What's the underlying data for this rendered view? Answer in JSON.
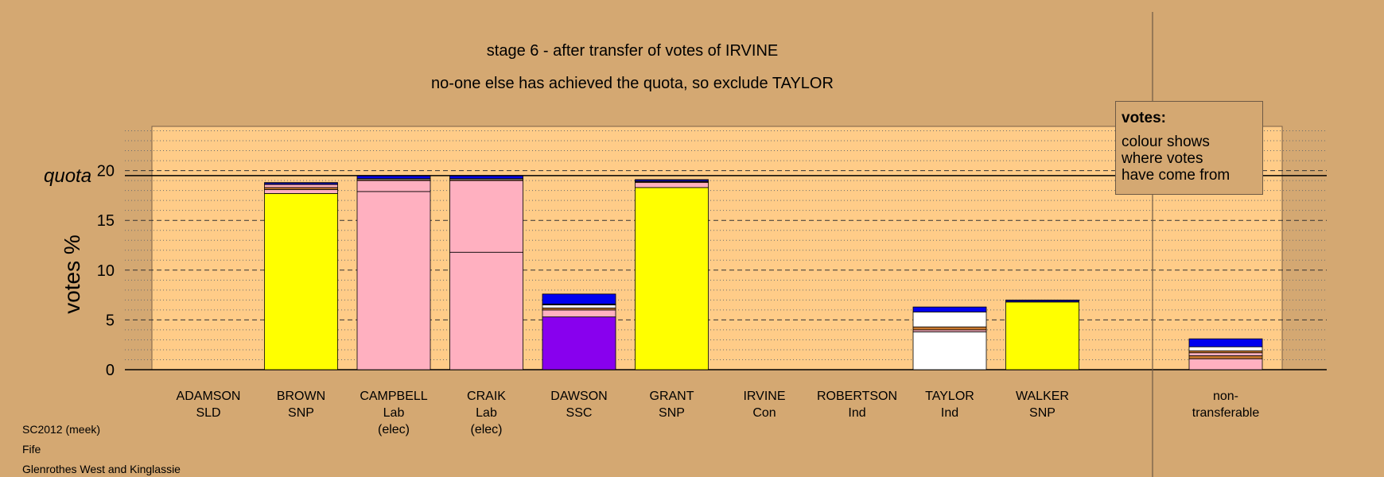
{
  "title": "stage 6 - after transfer of votes of IRVINE",
  "subtitle": "no-one else has achieved the quota, so exclude TAYLOR",
  "legend": {
    "heading": "votes:",
    "lines": [
      "colour shows",
      "where votes",
      "have come from"
    ]
  },
  "footer": {
    "line1": "SC2012 (meek)",
    "line2": "Fife",
    "line3": "Glenrothes West and Kinglassie"
  },
  "colors": {
    "background": "#D4A872",
    "plot_area": "#FFCC88",
    "SNP": "#FFFF00",
    "Lab": "#FFB0C0",
    "SSC": "#8800EE",
    "Ind_other": "#0000EE",
    "Ind": "#FFFFFF",
    "Con": "#0A0A8C",
    "misc": "#C8782E"
  },
  "chart_data": {
    "type": "bar",
    "stacked": true,
    "ylabel": "votes %",
    "ylim": [
      0,
      25
    ],
    "yticks": [
      0,
      5,
      10,
      15,
      20
    ],
    "quota": 19.5,
    "quota_label": "quota",
    "grid": "dashed every 5, dotted every 1",
    "legend_placement": "top-right",
    "categories": [
      {
        "name": "ADAMSON",
        "party": "SLD",
        "note": "",
        "segments": []
      },
      {
        "name": "BROWN",
        "party": "SNP",
        "note": "",
        "segments": [
          {
            "source": "SNP",
            "value": 17.7,
            "color": "#FFFF00"
          },
          {
            "source": "Lab",
            "value": 0.4,
            "color": "#FFB0C0"
          },
          {
            "source": "misc",
            "value": 0.2,
            "color": "#C8782E"
          },
          {
            "source": "Lab",
            "value": 0.3,
            "color": "#FFB0C0"
          },
          {
            "source": "Con",
            "value": 0.2,
            "color": "#0A0A8C"
          }
        ]
      },
      {
        "name": "CAMPBELL",
        "party": "Lab",
        "note": "(elec)",
        "segments": [
          {
            "source": "Lab",
            "value": 17.9,
            "color": "#FFB0C0"
          },
          {
            "source": "Lab",
            "value": 1.1,
            "color": "#FFB0C0"
          },
          {
            "source": "misc",
            "value": 0.1,
            "color": "#C8782E"
          },
          {
            "source": "Ind",
            "value": 0.1,
            "color": "#FFFFFF"
          },
          {
            "source": "Ind_other",
            "value": 0.3,
            "color": "#0000EE"
          }
        ]
      },
      {
        "name": "CRAIK",
        "party": "Lab",
        "note": "(elec)",
        "segments": [
          {
            "source": "Lab",
            "value": 11.8,
            "color": "#FFB0C0"
          },
          {
            "source": "Lab",
            "value": 7.2,
            "color": "#FFB0C0"
          },
          {
            "source": "misc",
            "value": 0.1,
            "color": "#C8782E"
          },
          {
            "source": "Ind",
            "value": 0.1,
            "color": "#FFFFFF"
          },
          {
            "source": "Ind_other",
            "value": 0.3,
            "color": "#0000EE"
          }
        ]
      },
      {
        "name": "DAWSON",
        "party": "SSC",
        "note": "",
        "segments": [
          {
            "source": "SSC",
            "value": 5.3,
            "color": "#8800EE"
          },
          {
            "source": "Lab",
            "value": 0.7,
            "color": "#FFB0C0"
          },
          {
            "source": "misc",
            "value": 0.2,
            "color": "#C8782E"
          },
          {
            "source": "Ind",
            "value": 0.3,
            "color": "#FFFFFF"
          },
          {
            "source": "Con",
            "value": 0.1,
            "color": "#0A0A8C"
          },
          {
            "source": "Ind_other",
            "value": 1.0,
            "color": "#0000EE"
          }
        ]
      },
      {
        "name": "GRANT",
        "party": "SNP",
        "note": "",
        "segments": [
          {
            "source": "SNP",
            "value": 18.3,
            "color": "#FFFF00"
          },
          {
            "source": "Lab",
            "value": 0.5,
            "color": "#FFB0C0"
          },
          {
            "source": "misc",
            "value": 0.1,
            "color": "#C8782E"
          },
          {
            "source": "Con",
            "value": 0.2,
            "color": "#0A0A8C"
          }
        ]
      },
      {
        "name": "IRVINE",
        "party": "Con",
        "note": "",
        "segments": []
      },
      {
        "name": "ROBERTSON",
        "party": "Ind",
        "note": "",
        "segments": []
      },
      {
        "name": "TAYLOR",
        "party": "Ind",
        "note": "",
        "segments": [
          {
            "source": "Ind",
            "value": 3.8,
            "color": "#FFFFFF"
          },
          {
            "source": "Lab",
            "value": 0.2,
            "color": "#FFB0C0"
          },
          {
            "source": "misc",
            "value": 0.3,
            "color": "#C8782E"
          },
          {
            "source": "Ind",
            "value": 1.5,
            "color": "#FFFFFF"
          },
          {
            "source": "Ind_other",
            "value": 0.5,
            "color": "#0000EE"
          }
        ]
      },
      {
        "name": "WALKER",
        "party": "SNP",
        "note": "",
        "segments": [
          {
            "source": "SNP",
            "value": 6.8,
            "color": "#FFFF00"
          },
          {
            "source": "Con",
            "value": 0.2,
            "color": "#0A0A8C"
          }
        ]
      }
    ],
    "separate_column": {
      "name": "non-",
      "party": "transferable",
      "segments": [
        {
          "source": "Lab",
          "value": 1.1,
          "color": "#FFB0C0"
        },
        {
          "source": "misc",
          "value": 0.3,
          "color": "#C8782E"
        },
        {
          "source": "Lab",
          "value": 0.3,
          "color": "#FFB0C0"
        },
        {
          "source": "misc",
          "value": 0.2,
          "color": "#C8782E"
        },
        {
          "source": "Ind",
          "value": 0.4,
          "color": "#FFFFFF"
        },
        {
          "source": "Ind_other",
          "value": 0.8,
          "color": "#0000EE"
        }
      ]
    }
  }
}
